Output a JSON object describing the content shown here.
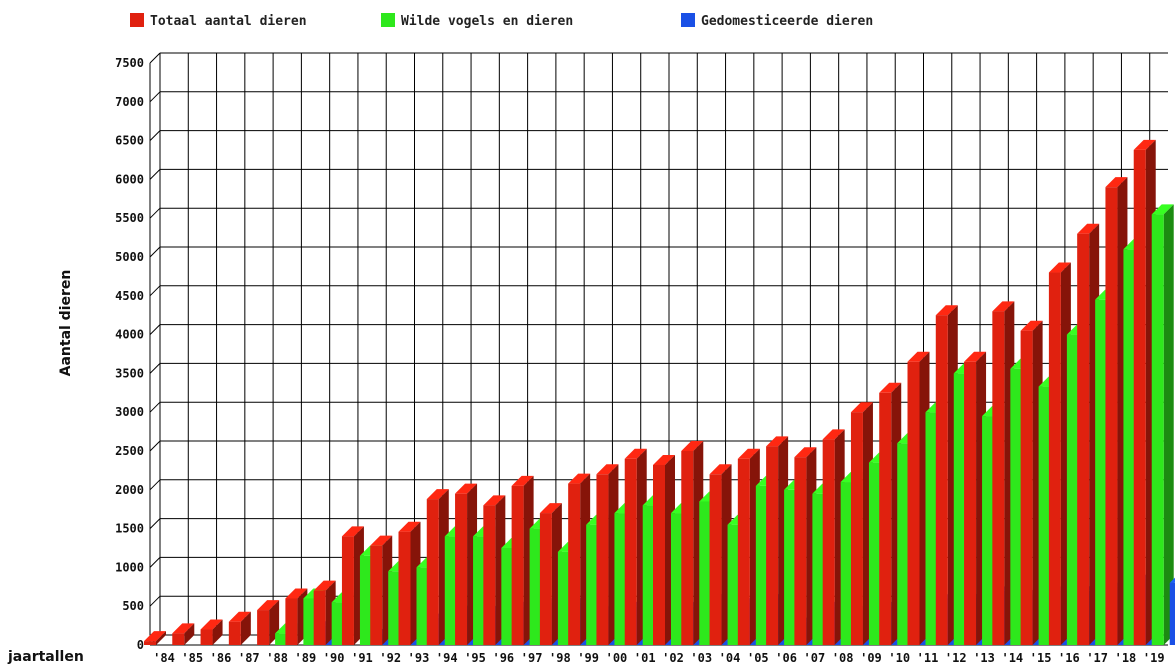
{
  "chart_data": {
    "type": "bar",
    "title": "",
    "xlabel": "jaartallen",
    "ylabel": "Aantal dieren",
    "ylim": [
      0,
      7500
    ],
    "yticks": [
      0,
      500,
      1000,
      1500,
      2000,
      2500,
      3000,
      3500,
      4000,
      4500,
      5000,
      5500,
      6000,
      6500,
      7000,
      7500
    ],
    "grid": true,
    "legend_position": "top",
    "categories": [
      "'84",
      "'85",
      "'86",
      "'87",
      "'88",
      "'89",
      "'90",
      "'91",
      "'92",
      "'93",
      "'94",
      "'95",
      "'96",
      "'97",
      "'98",
      "'99",
      "'00",
      "'01",
      "'02",
      "'03",
      "'04",
      "'05",
      "'06",
      "'07",
      "'08",
      "'09",
      "'10",
      "'11",
      "'12",
      "'13",
      "'14",
      "'15",
      "'16",
      "'17",
      "'18",
      "'19"
    ],
    "series": [
      {
        "name": "Totaal aantal dieren",
        "color": "#e0210f",
        "values": [
          50,
          150,
          200,
          300,
          450,
          600,
          700,
          1400,
          1280,
          1460,
          1880,
          1950,
          1800,
          2050,
          1700,
          2080,
          2200,
          2400,
          2320,
          2500,
          2200,
          2400,
          2560,
          2420,
          2650,
          3000,
          3250,
          3650,
          4250,
          3650,
          4300,
          4050,
          4800,
          5300,
          5900,
          6380
        ]
      },
      {
        "name": "Wilde vogels en dieren",
        "color": "#2ee81c",
        "values": [
          0,
          0,
          0,
          0,
          150,
          600,
          550,
          1150,
          950,
          1000,
          1400,
          1400,
          1250,
          1500,
          1200,
          1550,
          1700,
          1800,
          1700,
          1850,
          1550,
          2050,
          2000,
          1950,
          2100,
          2350,
          2600,
          3000,
          3500,
          2950,
          3560,
          3330,
          4000,
          4450,
          5100,
          5550
        ]
      },
      {
        "name": "Gedomesticeerde dieren",
        "color": "#1a50e6",
        "values": [
          0,
          0,
          0,
          0,
          0,
          250,
          0,
          150,
          200,
          350,
          450,
          450,
          500,
          550,
          550,
          450,
          500,
          450,
          500,
          600,
          550,
          600,
          300,
          500,
          450,
          500,
          600,
          600,
          600,
          700,
          650,
          700,
          700,
          750,
          850,
          800
        ]
      }
    ]
  }
}
